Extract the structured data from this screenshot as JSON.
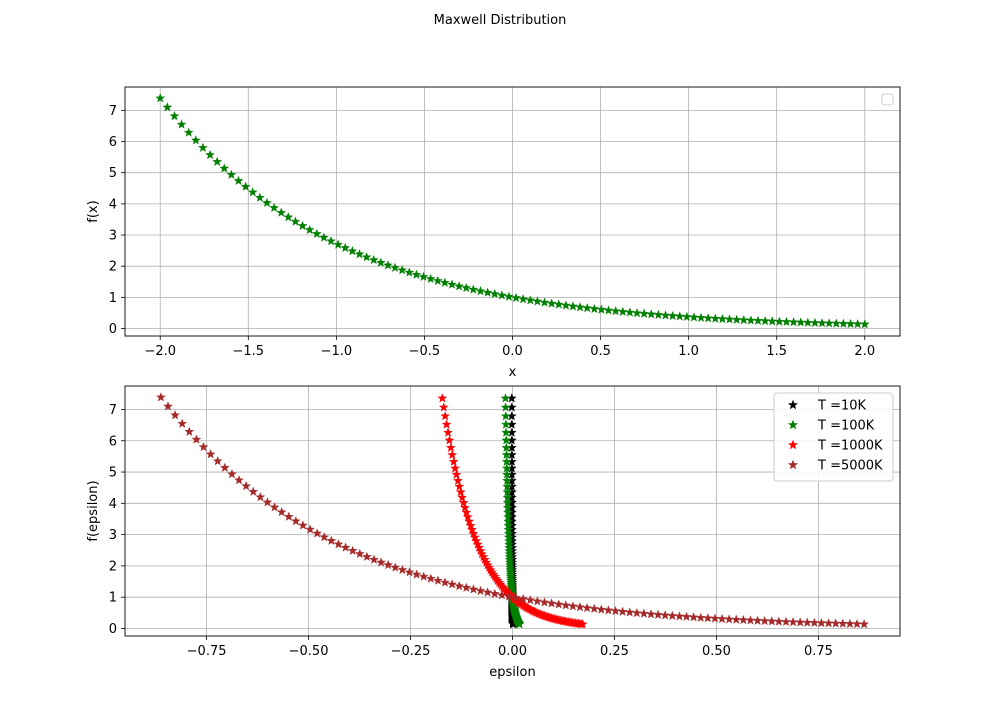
{
  "figure": {
    "suptitle": "Maxwell Distribution"
  },
  "chart_data": [
    {
      "type": "scatter",
      "title": "",
      "xlabel": "x",
      "ylabel": "f(x)",
      "xlim": [
        -2.2,
        2.2
      ],
      "ylim": [
        -0.24,
        7.75
      ],
      "xticks": [
        -2.0,
        -1.5,
        -1.0,
        -0.5,
        0.0,
        0.5,
        1.0,
        1.5,
        2.0
      ],
      "xtick_labels": [
        "−2.0",
        "−1.5",
        "−1.0",
        "−0.5",
        "0.0",
        "0.5",
        "1.0",
        "1.5",
        "2.0"
      ],
      "yticks": [
        0,
        1,
        2,
        3,
        4,
        5,
        6,
        7
      ],
      "ytick_labels": [
        "0",
        "1",
        "2",
        "3",
        "4",
        "5",
        "6",
        "7"
      ],
      "grid": true,
      "legend": {
        "position": "top-right",
        "entries": []
      },
      "marker": "star",
      "series": [
        {
          "color": "#008000",
          "x_range": [
            -2.0,
            2.0
          ],
          "points": 100,
          "function": "exp(-x)",
          "x_scale": 1.0
        }
      ]
    },
    {
      "type": "scatter",
      "title": "",
      "xlabel": "epsilon",
      "ylabel": "f(epsilon)",
      "xlim": [
        -0.95,
        0.95
      ],
      "ylim": [
        -0.24,
        7.75
      ],
      "xticks": [
        -0.75,
        -0.5,
        -0.25,
        0.0,
        0.25,
        0.5,
        0.75
      ],
      "xtick_labels": [
        "−0.75",
        "−0.50",
        "−0.25",
        "0.00",
        "0.25",
        "0.50",
        "0.75"
      ],
      "yticks": [
        0,
        1,
        2,
        3,
        4,
        5,
        6,
        7
      ],
      "ytick_labels": [
        "0",
        "1",
        "2",
        "3",
        "4",
        "5",
        "6",
        "7"
      ],
      "grid": true,
      "legend": {
        "position": "top-right"
      },
      "marker": "star",
      "series": [
        {
          "name": "T =10K",
          "color": "#000000",
          "x_range": [
            -0.00172,
            0.00172
          ],
          "points": 100,
          "function": "exp(-epsilon/0.000862)"
        },
        {
          "name": "T =100K",
          "color": "#008000",
          "x_range": [
            -0.0172,
            0.0172
          ],
          "points": 100,
          "function": "exp(-epsilon/0.00862)"
        },
        {
          "name": "T =1000K",
          "color": "#ff0000",
          "x_range": [
            -0.172,
            0.172
          ],
          "points": 100,
          "function": "exp(-epsilon/0.0862)"
        },
        {
          "name": "T =5000K",
          "color": "#a52a2a",
          "x_range": [
            -0.862,
            0.862
          ],
          "points": 100,
          "function": "exp(-epsilon/0.431)"
        }
      ]
    }
  ]
}
